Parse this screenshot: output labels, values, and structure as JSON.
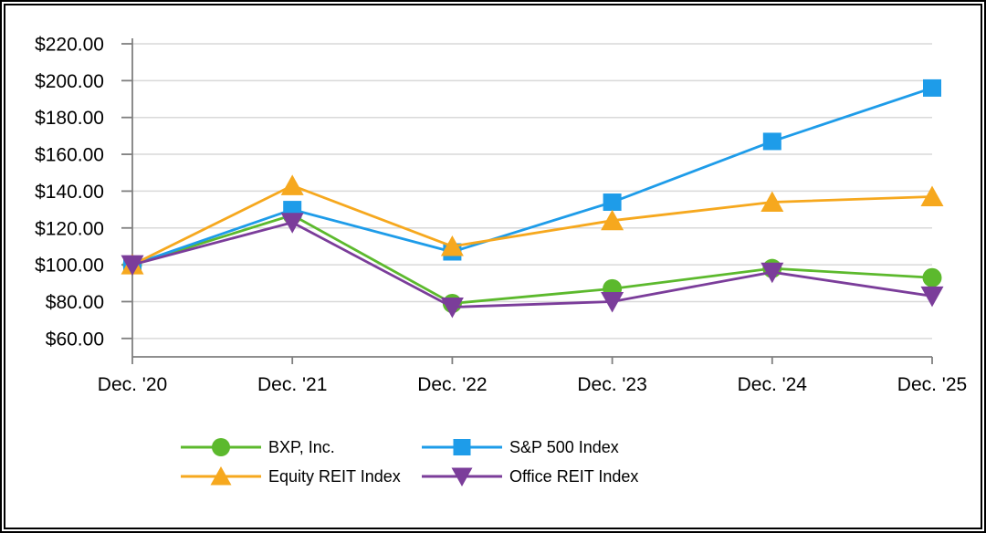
{
  "chart_data": {
    "type": "line",
    "title": "",
    "xlabel": "",
    "ylabel": "",
    "categories": [
      "Dec. '20",
      "Dec. '21",
      "Dec. '22",
      "Dec. '23",
      "Dec. '24",
      "Dec. '25"
    ],
    "series": [
      {
        "name": "BXP, Inc.",
        "marker": "circle",
        "color": "#5cb92d",
        "values": [
          100,
          127,
          79,
          87,
          98,
          93
        ]
      },
      {
        "name": "S&P 500 Index",
        "marker": "square",
        "color": "#1e9ce9",
        "values": [
          100,
          130,
          107,
          134,
          167,
          196
        ]
      },
      {
        "name": "Equity REIT Index",
        "marker": "triangle-up",
        "color": "#f6a81e",
        "values": [
          100,
          143,
          110,
          124,
          134,
          137
        ]
      },
      {
        "name": "Office REIT Index",
        "marker": "triangle-down",
        "color": "#7b3d9a",
        "values": [
          100,
          123,
          77,
          80,
          96,
          83
        ]
      }
    ],
    "y_axis": {
      "min": 50,
      "max": 223,
      "tick_values": [
        60,
        80,
        100,
        120,
        140,
        160,
        180,
        200,
        220
      ],
      "tick_labels": [
        "$60.00",
        "$80.00",
        "$100.00",
        "$120.00",
        "$140.00",
        "$160.00",
        "$180.00",
        "$200.00",
        "$220.00"
      ]
    },
    "grid": "horizontal",
    "legend_position": "bottom",
    "colors": {
      "gridline": "#d9d9d9",
      "axis": "#7f7f7f",
      "text": "#000000",
      "background": "#ffffff",
      "frame": "#000000"
    }
  },
  "legend": {
    "columns": 2,
    "order": [
      0,
      1,
      2,
      3
    ]
  }
}
